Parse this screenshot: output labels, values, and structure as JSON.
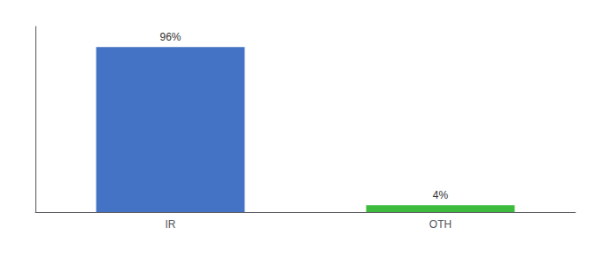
{
  "chart_data": {
    "type": "bar",
    "categories": [
      "IR",
      "OTH"
    ],
    "values": [
      96,
      4
    ],
    "value_labels": [
      "96%",
      "4%"
    ],
    "colors": [
      "#4472c4",
      "#3dbb3d"
    ],
    "ylim": [
      0,
      108
    ],
    "data_labels": true,
    "tick_labels": "x",
    "grid": false
  }
}
